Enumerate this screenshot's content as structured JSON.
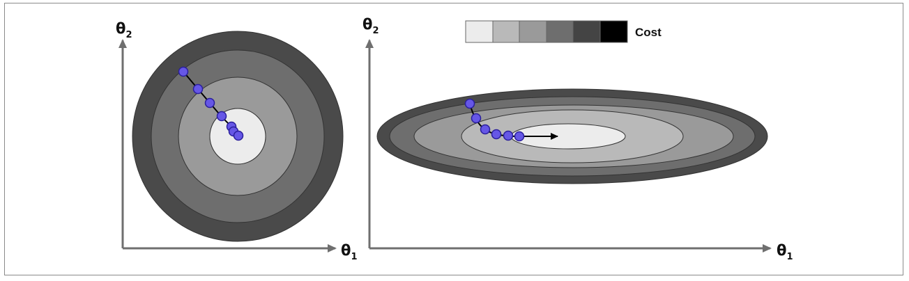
{
  "legend": {
    "label": "Cost",
    "swatches": [
      "#ececec",
      "#b9b9b9",
      "#9a9a9a",
      "#6e6e6e",
      "#444444",
      "#000000"
    ]
  },
  "left_panel": {
    "y_axis": {
      "symbol": "θ",
      "subscript": "2"
    },
    "x_axis": {
      "symbol": "θ",
      "subscript": "1"
    }
  },
  "right_panel": {
    "y_axis": {
      "symbol": "θ",
      "subscript": "2"
    },
    "x_axis": {
      "symbol": "θ",
      "subscript": "1"
    }
  },
  "colors": {
    "axis": "#6f6f6f",
    "step_point": "#6657e6",
    "step_point_stroke": "#2a1f9c",
    "contours": [
      "#4a4a4a",
      "#6e6e6e",
      "#9a9a9a",
      "#b9b9b9",
      "#ececec"
    ],
    "contour_stroke": "#333333",
    "path": "#000000"
  }
}
